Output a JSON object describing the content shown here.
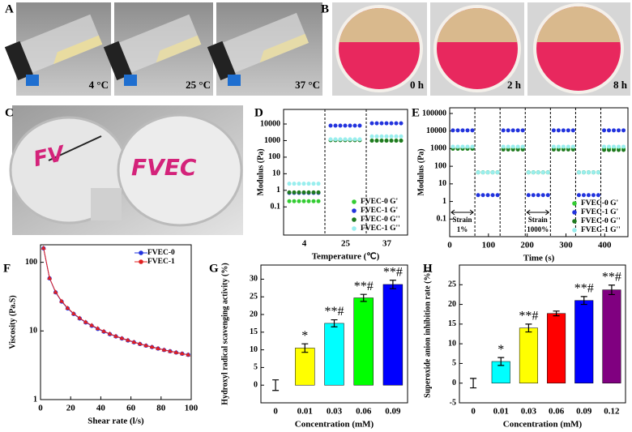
{
  "panels": {
    "A": {
      "label": "A",
      "captions": [
        "4 °C",
        "25 °C",
        "37 °C"
      ]
    },
    "B": {
      "label": "B",
      "captions": [
        "0 h",
        "2 h",
        "8 h"
      ]
    },
    "C": {
      "label": "C",
      "writing": [
        "FV",
        "FVEC"
      ]
    }
  },
  "chart_data": [
    {
      "panel": "D",
      "type": "scatter",
      "xlabel": "Temperature (℃)",
      "ylabel": "Modulus (Pa)",
      "categories": [
        "4",
        "25",
        "37"
      ],
      "log_y": true,
      "ylim": [
        0.002,
        76000
      ],
      "yticks": [
        0.1,
        1,
        10,
        100,
        1000,
        10000
      ],
      "legend": "lower right",
      "series": [
        {
          "name": "FVEC-0 G'",
          "color": "#33cc33",
          "values": [
            0.22,
            1100,
            1000
          ]
        },
        {
          "name": "FVEC-1 G'",
          "color": "#2233dd",
          "values": [
            0.7,
            8000,
            11000
          ]
        },
        {
          "name": "FVEC-0 G''",
          "color": "#1f7a1f",
          "values": [
            0.75,
            1050,
            1000
          ]
        },
        {
          "name": "FVEC-1 G''",
          "color": "#99eeee",
          "values": [
            2.5,
            1200,
            1800
          ]
        }
      ]
    },
    {
      "panel": "E",
      "type": "scatter",
      "xlabel": "Time (s)",
      "ylabel": "Modulus (Pa)",
      "segments": [
        [
          0,
          65
        ],
        [
          65,
          130
        ],
        [
          130,
          195
        ],
        [
          195,
          260
        ],
        [
          260,
          325
        ],
        [
          325,
          390
        ],
        [
          390,
          460
        ]
      ],
      "xlim": [
        0,
        460
      ],
      "xticks": [
        0,
        100,
        200,
        300,
        400
      ],
      "log_y": true,
      "ylim": [
        0.01,
        210000
      ],
      "yticks": [
        0.1,
        1,
        10,
        100,
        1000,
        10000,
        100000
      ],
      "legend": "lower right",
      "annotations": [
        "Strain",
        "1%",
        "Strain",
        "1000%"
      ],
      "series": [
        {
          "name": "FVEC-0 G'",
          "color": "#33cc33",
          "values": [
            1000,
            45,
            1000,
            45,
            1000,
            45,
            1000
          ]
        },
        {
          "name": "FVEC-1 G'",
          "color": "#2233dd",
          "values": [
            11000,
            2.3,
            11000,
            2.3,
            11000,
            2.3,
            11000
          ]
        },
        {
          "name": "FVEC-0 G''",
          "color": "#1f7a1f",
          "values": [
            1000,
            45,
            900,
            45,
            900,
            45,
            850
          ]
        },
        {
          "name": "FVEC-1 G''",
          "color": "#99eeee",
          "values": [
            1300,
            45,
            1300,
            45,
            1300,
            45,
            1300
          ]
        }
      ]
    },
    {
      "panel": "F",
      "type": "line",
      "xlabel": "Shear rate (l/s)",
      "ylabel": "Viscosity (Pa.S)",
      "xlim": [
        0,
        100
      ],
      "xticks": [
        0,
        20,
        40,
        60,
        80,
        100
      ],
      "log_y": true,
      "ylim": [
        1,
        180
      ],
      "yticks": [
        1,
        10,
        100
      ],
      "legend": "upper right",
      "x": [
        2,
        6,
        10,
        14,
        18,
        22,
        26,
        30,
        34,
        38,
        42,
        46,
        50,
        54,
        58,
        62,
        66,
        70,
        74,
        78,
        82,
        86,
        90,
        94,
        98
      ],
      "series": [
        {
          "name": "FVEC-0",
          "color": "#2233dd",
          "marker": "circle",
          "values": [
            160,
            58.4,
            36.5,
            26.8,
            21.3,
            17.7,
            15.2,
            13.3,
            11.9,
            10.7,
            9.76,
            8.99,
            8.33,
            7.77,
            7.27,
            6.84,
            6.45,
            6.11,
            5.82,
            5.54,
            5.28,
            5.06,
            4.85,
            4.66,
            4.49
          ]
        },
        {
          "name": "FVEC-1",
          "color": "#e02020",
          "marker": "triangle",
          "values": [
            162,
            59,
            37,
            27.2,
            21.6,
            17.9,
            15.4,
            13.5,
            12.1,
            10.9,
            9.9,
            9.1,
            8.4,
            7.85,
            7.35,
            6.9,
            6.5,
            6.15,
            5.85,
            5.57,
            5.3,
            5.08,
            4.87,
            4.68,
            4.5
          ]
        }
      ]
    },
    {
      "panel": "G",
      "type": "bar",
      "xlabel": "Concentration (mM)",
      "ylabel": "Hydroxyl radical scavenging activity (%)",
      "categories": [
        "0",
        "0.01",
        "0.03",
        "0.06",
        "0.09"
      ],
      "values": [
        0,
        10.5,
        17.5,
        24.7,
        28.5
      ],
      "errors": [
        1.5,
        1.2,
        1,
        1,
        1.2
      ],
      "colors": [
        "#ff0000",
        "#ffff00",
        "#00ffff",
        "#00ff00",
        "#0000ff"
      ],
      "annotations": [
        null,
        "*",
        "**#",
        "**#",
        "**#"
      ],
      "ylim": [
        -5,
        34
      ],
      "yticks": [
        0,
        5,
        10,
        15,
        20,
        25,
        30
      ]
    },
    {
      "panel": "H",
      "type": "bar",
      "xlabel": "Concentration (mM)",
      "ylabel": "Superoxide anion inhibition rate (%)",
      "categories": [
        "0",
        "0.01",
        "0.03",
        "0.06",
        "0.09",
        "0.12"
      ],
      "values": [
        0,
        5.5,
        14,
        17.7,
        21,
        23.7
      ],
      "errors": [
        1.2,
        1,
        1,
        0.6,
        1,
        1.2
      ],
      "colors": [
        "#ff0000",
        "#00ffff",
        "#ffff00",
        "#ff0000",
        "#0000ff",
        "#800080"
      ],
      "annotations": [
        null,
        "*",
        "**#",
        null,
        "**#",
        "**#"
      ],
      "ylim": [
        -5,
        30
      ],
      "yticks": [
        -5,
        0,
        5,
        10,
        15,
        20,
        25
      ]
    }
  ]
}
